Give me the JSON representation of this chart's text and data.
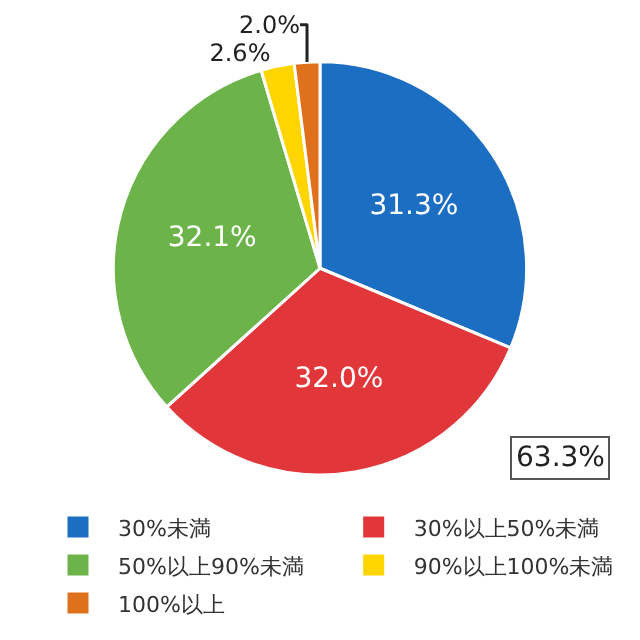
{
  "chart_data": {
    "type": "pie",
    "categories": [
      "30%未満",
      "30%以上50%未満",
      "50%以上90%未満",
      "90%以上100%未満",
      "100%以上"
    ],
    "values": [
      31.3,
      32.0,
      32.1,
      2.6,
      2.0
    ],
    "value_labels": [
      "31.3%",
      "32.0%",
      "32.1%",
      "2.6%",
      "2.0%"
    ],
    "colors": [
      "#1b6ec2",
      "#e1373a",
      "#6cb34a",
      "#ffd500",
      "#e0711c"
    ],
    "annotations": [
      "63.3%"
    ],
    "legend": "bottom"
  }
}
